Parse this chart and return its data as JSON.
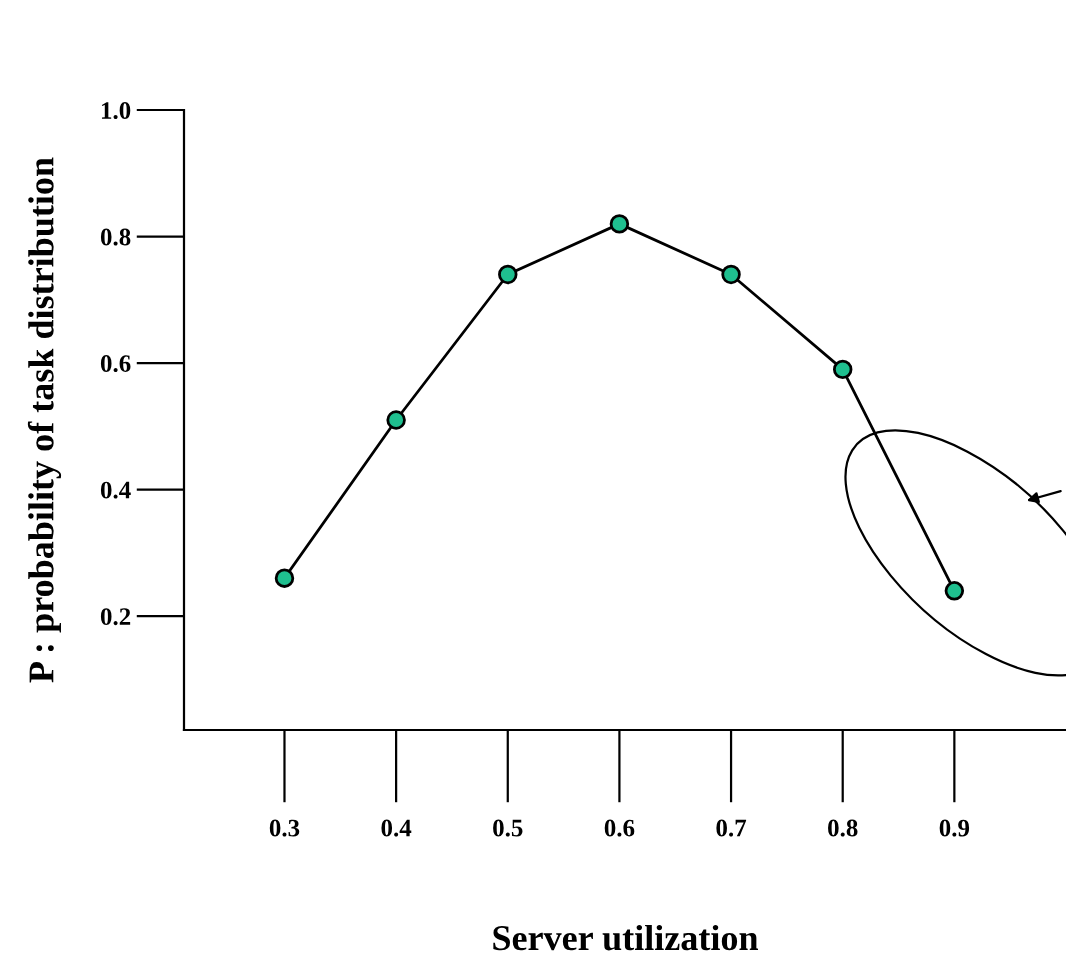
{
  "chart_data": {
    "type": "line",
    "xlabel": "Server utilization",
    "ylabel": "P : probability of task distribution",
    "x": [
      0.3,
      0.4,
      0.5,
      0.6,
      0.7,
      0.8,
      0.9
    ],
    "series": [
      {
        "color": "#000000",
        "values": [
          0.26,
          0.51,
          0.74,
          0.82,
          0.74,
          0.59,
          0.24
        ]
      }
    ],
    "xlim": [
      0.21,
      1.0
    ],
    "ylim": [
      0.02,
      1.0
    ],
    "xticks": [
      0.3,
      0.4,
      0.5,
      0.6,
      0.7,
      0.8,
      0.9
    ],
    "yticks": [
      0.2,
      0.4,
      0.6,
      0.8,
      {
        "value": 1.0,
        "label": "1.0"
      }
    ],
    "marker": "circle",
    "line_style": "solid",
    "grid": false,
    "legend": false
  }
}
